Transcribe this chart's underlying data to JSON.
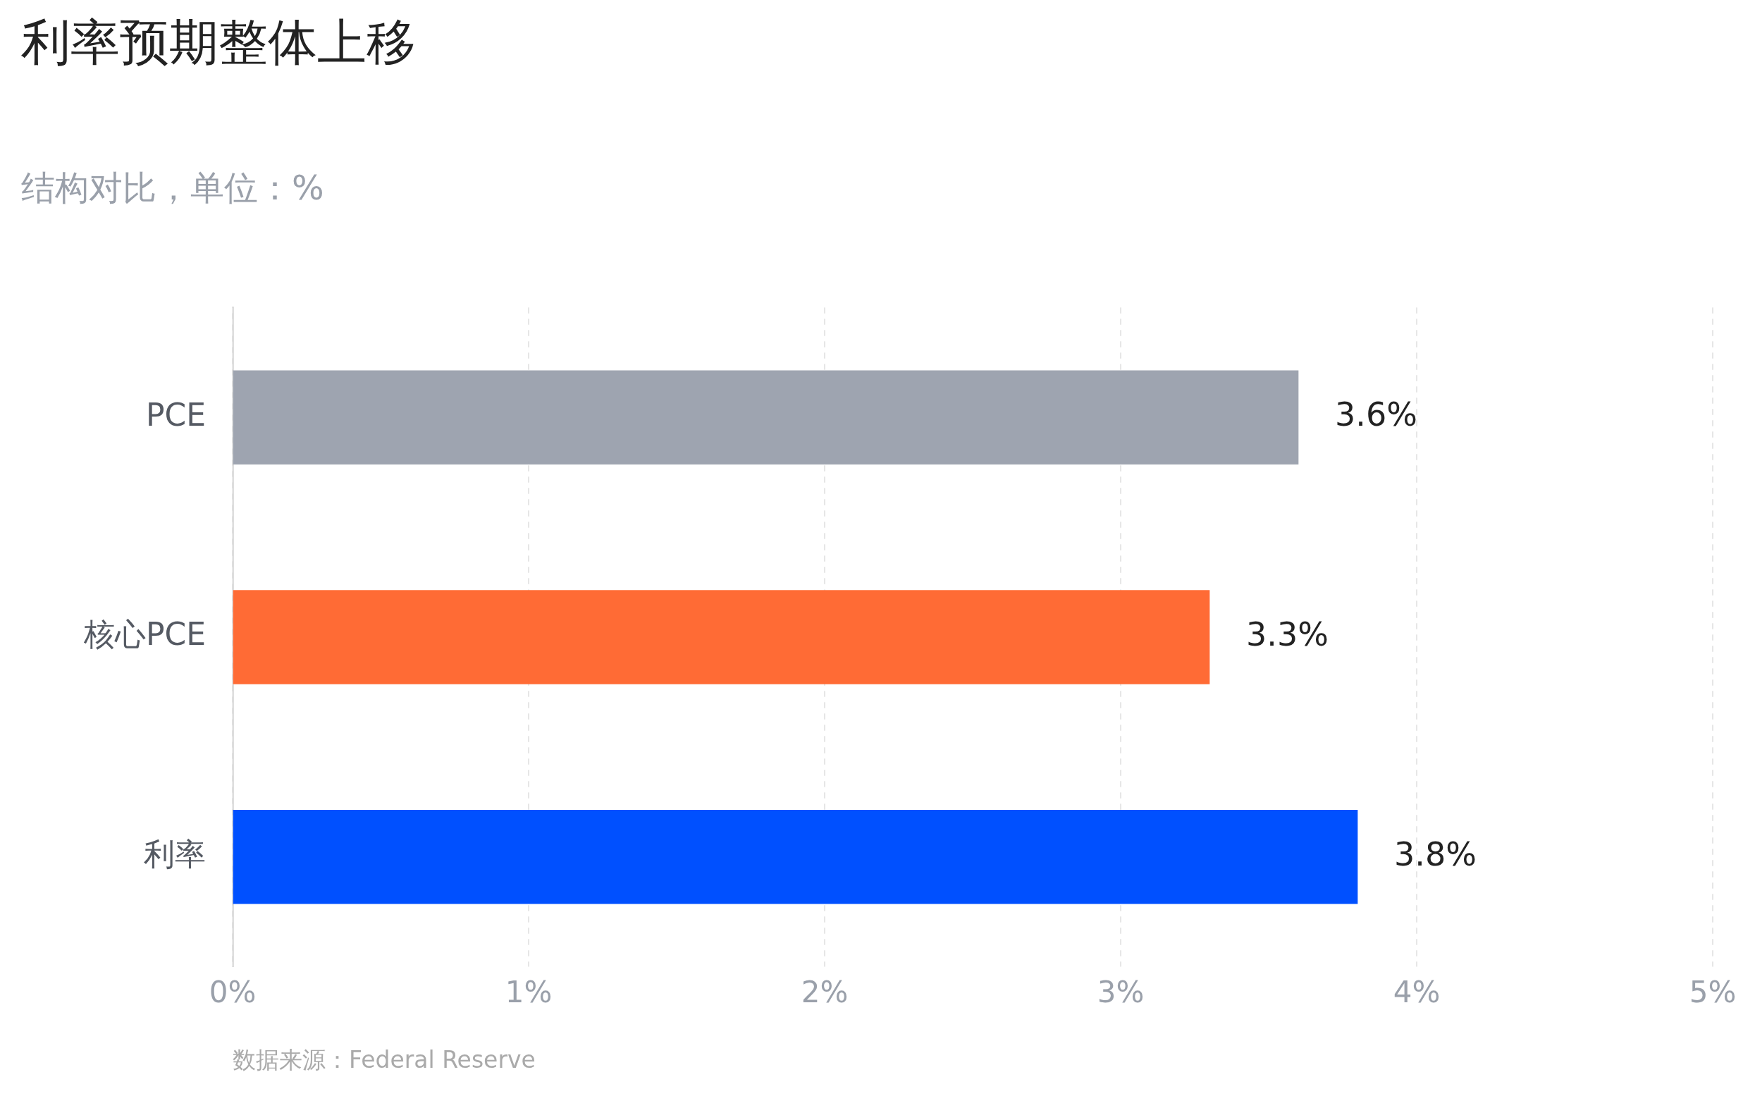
{
  "chart_data": {
    "type": "bar",
    "orientation": "horizontal",
    "title": "利率预期整体上移",
    "subtitle": "结构对比，单位：%",
    "categories": [
      "PCE",
      "核心PCE",
      "利率"
    ],
    "values": [
      3.6,
      3.3,
      3.8
    ],
    "colors": [
      "#9ea4b0",
      "#ff6b35",
      "#0050ff"
    ],
    "value_labels": [
      "3.6%",
      "3.3%",
      "3.8%"
    ],
    "xlim": [
      0,
      5
    ],
    "xticks": [
      {
        "value": 0,
        "label": "0%"
      },
      {
        "value": 1,
        "label": "1%"
      },
      {
        "value": 2,
        "label": "2%"
      },
      {
        "value": 3,
        "label": "3%"
      },
      {
        "value": 4,
        "label": "4%"
      },
      {
        "value": 5,
        "label": "5%"
      }
    ],
    "grid": "x",
    "legend": false,
    "annotations": [
      "数据来源：Federal Reserve"
    ]
  }
}
